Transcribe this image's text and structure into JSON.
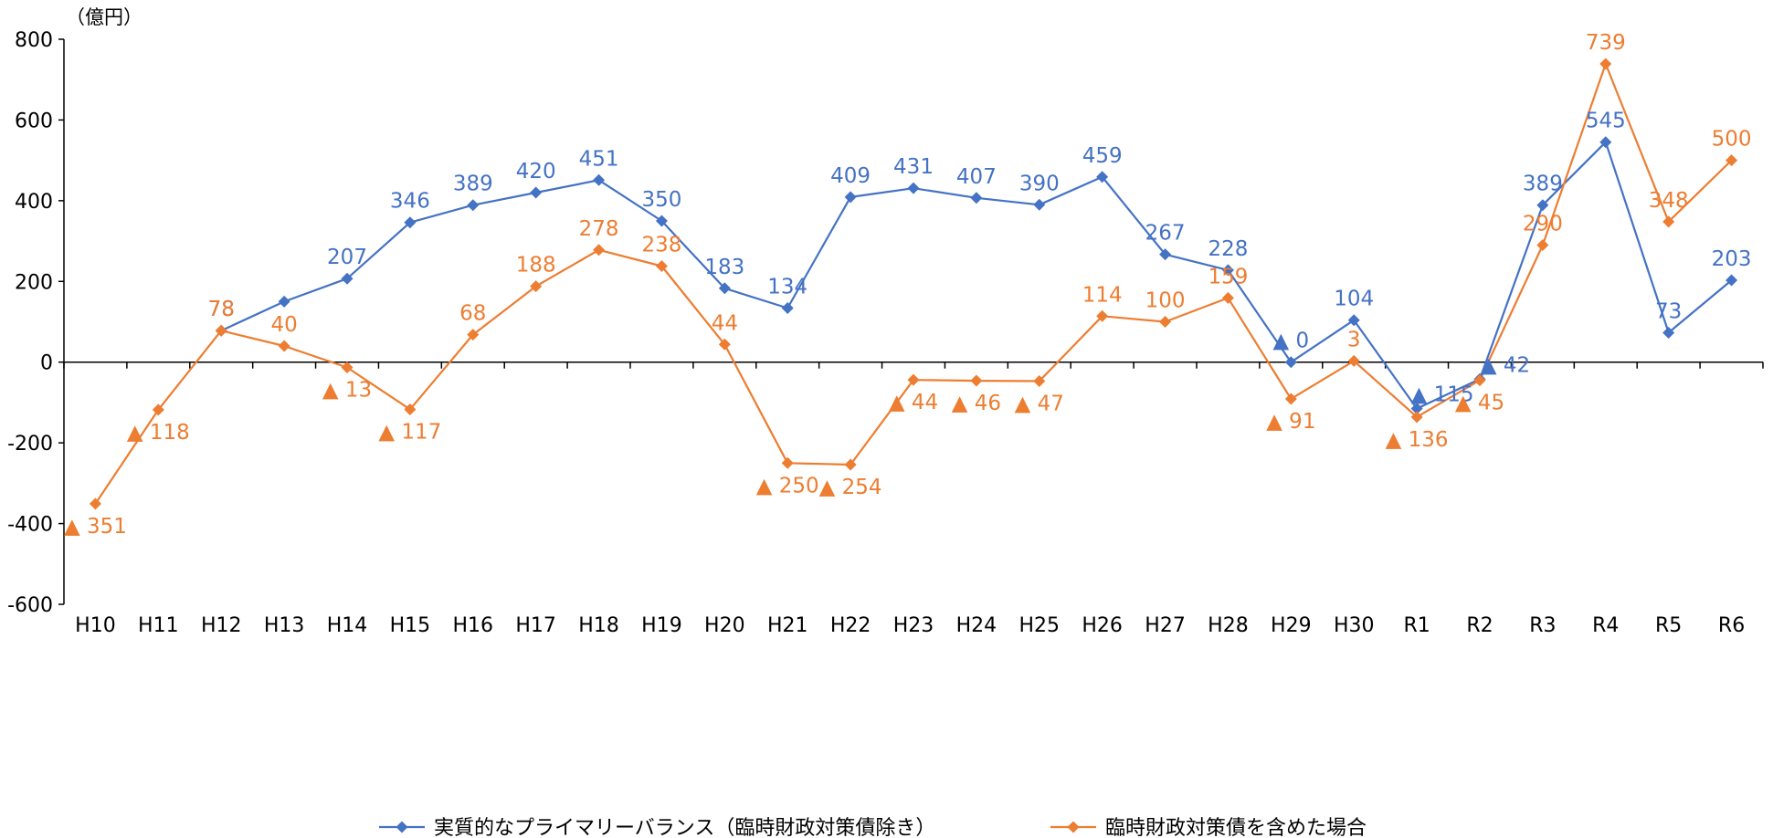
{
  "colors": {
    "series1": "#4472C4",
    "series2": "#ED7D31"
  },
  "chart_data": {
    "type": "line",
    "unit_label": "（億円）",
    "categories": [
      "H10",
      "H11",
      "H12",
      "H13",
      "H14",
      "H15",
      "H16",
      "H17",
      "H18",
      "H19",
      "H20",
      "H21",
      "H22",
      "H23",
      "H24",
      "H25",
      "H26",
      "H27",
      "H28",
      "H29",
      "H30",
      "R1",
      "R2",
      "R3",
      "R4",
      "R5",
      "R6"
    ],
    "ylim": [
      -600,
      800
    ],
    "yticks": [
      "800",
      "600",
      "400",
      "200",
      "0",
      "-200",
      "-400",
      "-600"
    ],
    "legend_position": "bottom",
    "series": [
      {
        "name": "実質的なプライマリーバランス（臨時財政対策債除き）",
        "values": [
          null,
          null,
          78,
          150,
          207,
          346,
          389,
          420,
          451,
          350,
          183,
          134,
          409,
          431,
          407,
          390,
          459,
          267,
          228,
          0,
          104,
          -115,
          -42,
          389,
          545,
          73,
          203
        ],
        "labels": [
          "",
          "",
          "78",
          "",
          "207",
          "346",
          "389",
          "420",
          "451",
          "350",
          "183",
          "134",
          "409",
          "431",
          "407",
          "390",
          "459",
          "267",
          "228",
          "▲ 0",
          "104",
          "▲ 115",
          "▲ 42",
          "389",
          "545",
          "73",
          "203"
        ]
      },
      {
        "name": "臨時財政対策債を含めた場合",
        "values": [
          -351,
          -118,
          78,
          40,
          -13,
          -117,
          68,
          188,
          278,
          238,
          44,
          -250,
          -254,
          -44,
          -46,
          -47,
          114,
          100,
          159,
          -91,
          3,
          -136,
          -45,
          290,
          739,
          348,
          500
        ],
        "labels": [
          "▲ 351",
          "▲ 118",
          "78",
          "40",
          "▲ 13",
          "▲ 117",
          "68",
          "188",
          "278",
          "238",
          "44",
          "▲ 250",
          "▲ 254",
          "▲ 44",
          "▲ 46",
          "▲ 47",
          "114",
          "100",
          "159",
          "▲ 91",
          "3",
          "▲ 136",
          "▲ 45",
          "290",
          "739",
          "348",
          "500"
        ]
      }
    ]
  }
}
